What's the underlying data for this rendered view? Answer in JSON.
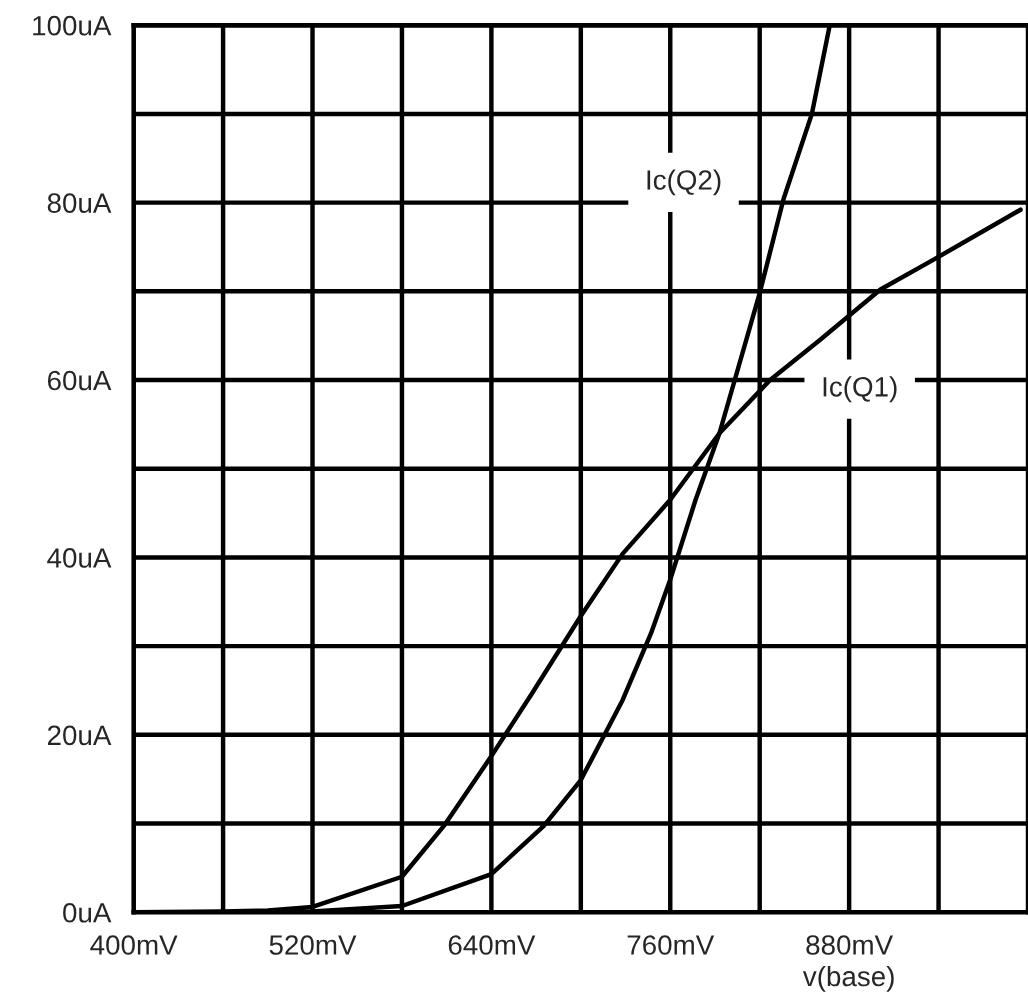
{
  "chart_data": {
    "type": "line",
    "xlabel": "v(base)",
    "xlim": [
      400,
      1000
    ],
    "ylim": [
      0,
      100
    ],
    "xticks": [
      {
        "value": 400,
        "label": "400mV"
      },
      {
        "value": 460,
        "label": null
      },
      {
        "value": 520,
        "label": "520mV"
      },
      {
        "value": 580,
        "label": null
      },
      {
        "value": 640,
        "label": "640mV"
      },
      {
        "value": 700,
        "label": null
      },
      {
        "value": 760,
        "label": "760mV"
      },
      {
        "value": 820,
        "label": null
      },
      {
        "value": 880,
        "label": "880mV"
      },
      {
        "value": 940,
        "label": null
      }
    ],
    "yticks": [
      {
        "value": 0,
        "label": "0uA"
      },
      {
        "value": 10,
        "label": null
      },
      {
        "value": 20,
        "label": "20uA"
      },
      {
        "value": 30,
        "label": null
      },
      {
        "value": 40,
        "label": "40uA"
      },
      {
        "value": 50,
        "label": null
      },
      {
        "value": 60,
        "label": "60uA"
      },
      {
        "value": 70,
        "label": null
      },
      {
        "value": 80,
        "label": "80uA"
      },
      {
        "value": 90,
        "label": null
      },
      {
        "value": 100,
        "label": "100uA"
      }
    ],
    "grid": true,
    "legend": false,
    "marker": "none",
    "line_style": "solid",
    "series": [
      {
        "name": "Ic(Q1)",
        "color": "#000000",
        "x": [
          400,
          460,
          490,
          520,
          580,
          608,
          640,
          667,
          700,
          728,
          760,
          793,
          827,
          861,
          901,
          937,
          995
        ],
        "values": [
          0,
          0.1,
          0.2,
          0.6,
          4,
          9.7,
          17.6,
          24.6,
          33.4,
          40.4,
          46.5,
          54,
          60,
          64.6,
          70.2,
          73.6,
          79.2
        ]
      },
      {
        "name": "Ic(Q2)",
        "color": "#000000",
        "x": [
          400,
          460,
          520,
          580,
          640,
          675,
          700,
          728,
          747,
          760,
          777,
          793,
          820,
          836,
          855,
          867
        ],
        "values": [
          0,
          0,
          0.1,
          0.7,
          4.3,
          9.7,
          14.9,
          23.9,
          31.4,
          37.5,
          46.5,
          54,
          69.8,
          80.4,
          90,
          100
        ]
      }
    ]
  }
}
